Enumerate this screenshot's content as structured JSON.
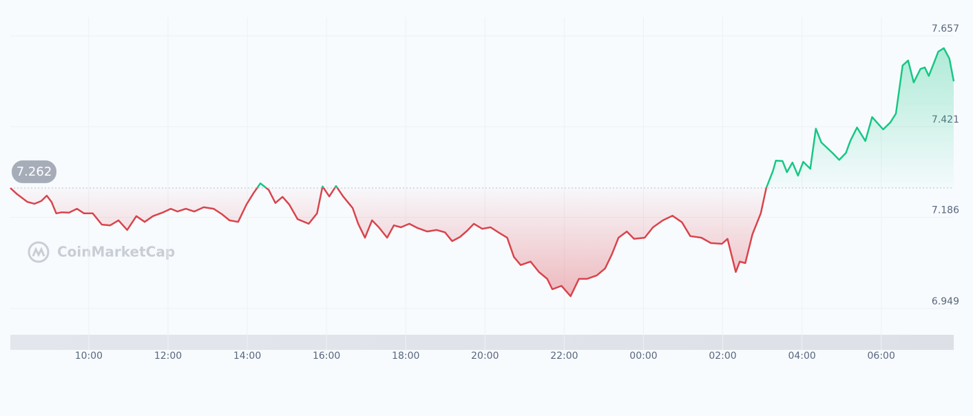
{
  "chart_data": {
    "type": "line",
    "watermark": "CoinMarketCap",
    "reference": {
      "value": 7.262,
      "label": "7.262"
    },
    "xlim": [
      8.02,
      31.83
    ],
    "xticks": [
      {
        "value": 10,
        "label": "10:00"
      },
      {
        "value": 12,
        "label": "12:00"
      },
      {
        "value": 14,
        "label": "14:00"
      },
      {
        "value": 16,
        "label": "16:00"
      },
      {
        "value": 18,
        "label": "18:00"
      },
      {
        "value": 20,
        "label": "20:00"
      },
      {
        "value": 22,
        "label": "22:00"
      },
      {
        "value": 24,
        "label": "00:00"
      },
      {
        "value": 26,
        "label": "02:00"
      },
      {
        "value": 28,
        "label": "04:00"
      },
      {
        "value": 30,
        "label": "06:00"
      }
    ],
    "ylim": [
      6.949,
      7.657
    ],
    "yticks": [
      {
        "value": 6.949,
        "label": "6.949"
      },
      {
        "value": 7.186,
        "label": "7.186"
      },
      {
        "value": 7.421,
        "label": "7.421"
      },
      {
        "value": 7.657,
        "label": "7.657"
      }
    ],
    "grid": true,
    "up_color": "#16c784",
    "down_color": "#d9434b",
    "x": [
      8.02,
      8.19,
      8.45,
      8.63,
      8.8,
      8.94,
      9.06,
      9.18,
      9.32,
      9.5,
      9.7,
      9.88,
      10.1,
      10.33,
      10.54,
      10.75,
      10.97,
      11.2,
      11.41,
      11.62,
      11.86,
      12.07,
      12.24,
      12.45,
      12.66,
      12.9,
      13.15,
      13.36,
      13.55,
      13.77,
      13.98,
      14.16,
      14.33,
      14.54,
      14.71,
      14.89,
      15.06,
      15.27,
      15.55,
      15.76,
      15.9,
      16.07,
      16.24,
      16.42,
      16.66,
      16.8,
      16.97,
      17.15,
      17.32,
      17.53,
      17.7,
      17.88,
      18.09,
      18.3,
      18.54,
      18.78,
      18.99,
      19.17,
      19.37,
      19.55,
      19.72,
      19.93,
      20.14,
      20.35,
      20.56,
      20.73,
      20.9,
      21.15,
      21.36,
      21.57,
      21.7,
      21.93,
      22.16,
      22.37,
      22.57,
      22.82,
      23.03,
      23.2,
      23.37,
      23.58,
      23.76,
      24.03,
      24.24,
      24.49,
      24.73,
      24.97,
      25.18,
      25.46,
      25.7,
      25.98,
      26.12,
      26.33,
      26.43,
      26.57,
      26.75,
      26.96,
      27.1,
      27.27,
      27.34,
      27.51,
      27.62,
      27.76,
      27.9,
      28.03,
      28.21,
      28.35,
      28.49,
      28.77,
      28.94,
      29.11,
      29.22,
      29.39,
      29.6,
      29.77,
      30.05,
      30.23,
      30.37,
      30.54,
      30.68,
      30.82,
      30.99,
      31.1,
      31.2,
      31.34,
      31.44,
      31.58,
      31.72,
      31.83
    ],
    "values": [
      7.262,
      7.246,
      7.226,
      7.221,
      7.228,
      7.242,
      7.226,
      7.196,
      7.199,
      7.198,
      7.208,
      7.196,
      7.196,
      7.167,
      7.165,
      7.178,
      7.153,
      7.189,
      7.174,
      7.189,
      7.198,
      7.208,
      7.201,
      7.208,
      7.201,
      7.212,
      7.208,
      7.194,
      7.178,
      7.174,
      7.219,
      7.249,
      7.274,
      7.257,
      7.223,
      7.239,
      7.219,
      7.181,
      7.169,
      7.196,
      7.266,
      7.24,
      7.267,
      7.24,
      7.21,
      7.169,
      7.133,
      7.178,
      7.16,
      7.133,
      7.165,
      7.16,
      7.169,
      7.158,
      7.149,
      7.153,
      7.147,
      7.124,
      7.135,
      7.151,
      7.169,
      7.156,
      7.16,
      7.146,
      7.133,
      7.083,
      7.062,
      7.071,
      7.044,
      7.026,
      6.999,
      7.008,
      6.981,
      7.026,
      7.026,
      7.035,
      7.053,
      7.089,
      7.133,
      7.149,
      7.13,
      7.133,
      7.16,
      7.178,
      7.19,
      7.173,
      7.137,
      7.133,
      7.119,
      7.117,
      7.13,
      7.044,
      7.071,
      7.067,
      7.142,
      7.196,
      7.262,
      7.307,
      7.333,
      7.332,
      7.303,
      7.328,
      7.294,
      7.33,
      7.312,
      7.416,
      7.38,
      7.353,
      7.335,
      7.353,
      7.384,
      7.419,
      7.384,
      7.446,
      7.414,
      7.432,
      7.455,
      7.58,
      7.593,
      7.536,
      7.571,
      7.575,
      7.553,
      7.589,
      7.616,
      7.625,
      7.598,
      7.539
    ]
  }
}
